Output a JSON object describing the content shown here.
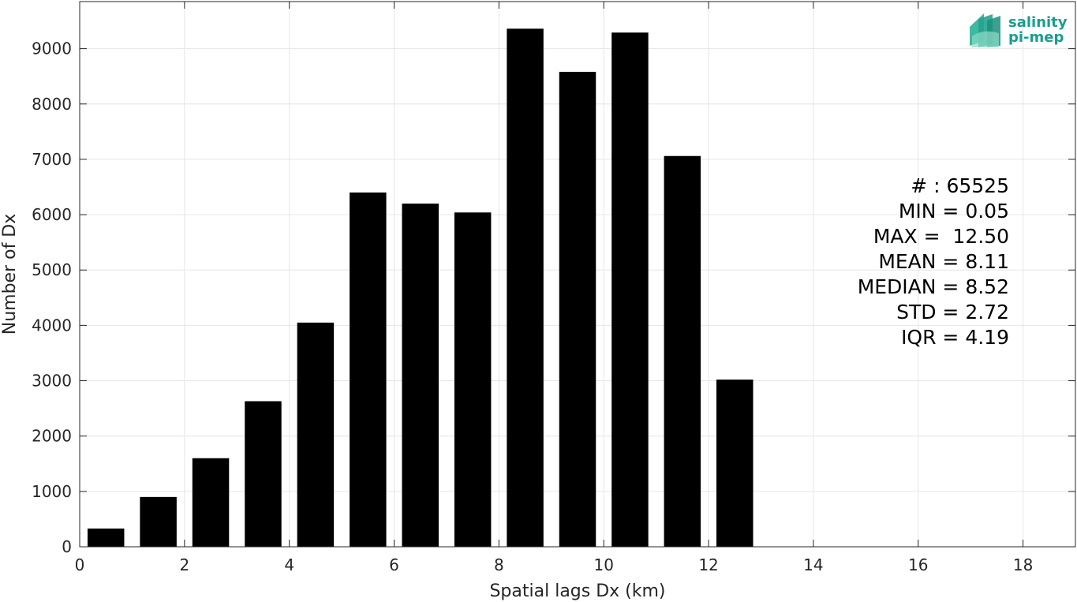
{
  "chart_data": {
    "type": "bar",
    "title": "",
    "xlabel": "Spatial lags Dx (km)",
    "ylabel": "Number of Dx",
    "xlim": [
      0,
      19
    ],
    "ylim": [
      0,
      9850
    ],
    "x_ticks": [
      0,
      2,
      4,
      6,
      8,
      10,
      12,
      14,
      16,
      18
    ],
    "y_ticks": [
      0,
      1000,
      2000,
      3000,
      4000,
      5000,
      6000,
      7000,
      8000,
      9000
    ],
    "grid": true,
    "bar_width": 0.7,
    "bar_color": "#000000",
    "bins": [
      {
        "x": 0.5,
        "value": 330
      },
      {
        "x": 1.5,
        "value": 900
      },
      {
        "x": 2.5,
        "value": 1600
      },
      {
        "x": 3.5,
        "value": 2630
      },
      {
        "x": 4.5,
        "value": 4050
      },
      {
        "x": 5.5,
        "value": 6400
      },
      {
        "x": 6.5,
        "value": 6200
      },
      {
        "x": 7.5,
        "value": 6040
      },
      {
        "x": 8.5,
        "value": 9360
      },
      {
        "x": 9.5,
        "value": 8580
      },
      {
        "x": 10.5,
        "value": 9290
      },
      {
        "x": 11.5,
        "value": 7060
      },
      {
        "x": 12.5,
        "value": 3020
      }
    ],
    "annotations": [
      "# : 65525",
      "MIN = 0.05",
      "MAX =  12.50",
      "MEAN = 8.11",
      "MEDIAN = 8.52",
      "STD = 2.72",
      "IQR = 4.19"
    ]
  },
  "logo": {
    "line1": "salinity",
    "line2": "pi-mep",
    "color": "#1a9e8e"
  }
}
